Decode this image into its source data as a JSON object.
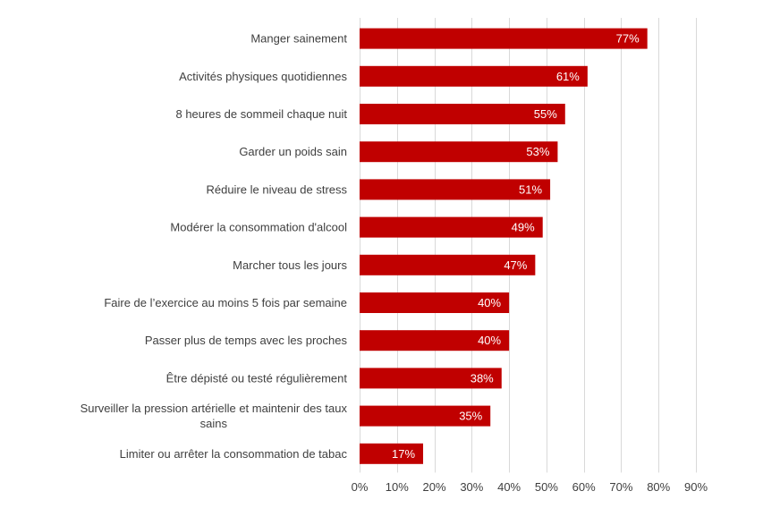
{
  "chart_data": {
    "type": "bar",
    "orientation": "horizontal",
    "categories": [
      "Manger sainement",
      "Activités physiques quotidiennes",
      "8 heures de sommeil chaque nuit",
      "Garder un poids sain",
      "Réduire le niveau de stress",
      "Modérer la consommation d'alcool",
      "Marcher tous les jours",
      "Faire de l’exercice au moins 5 fois par semaine",
      "Passer plus de temps avec les proches",
      "Être dépisté ou testé régulièrement",
      "Surveiller la pression artérielle et maintenir des taux sains",
      "Limiter ou arrêter la consommation de tabac"
    ],
    "values": [
      77,
      61,
      55,
      53,
      51,
      49,
      47,
      40,
      40,
      38,
      35,
      17
    ],
    "data_labels": [
      "77%",
      "61%",
      "55%",
      "53%",
      "51%",
      "49%",
      "47%",
      "40%",
      "40%",
      "38%",
      "35%",
      "17%"
    ],
    "xlim": [
      0,
      90
    ],
    "x_ticks": [
      0,
      10,
      20,
      30,
      40,
      50,
      60,
      70,
      80,
      90
    ],
    "x_tick_labels": [
      "0%",
      "10%",
      "20%",
      "30%",
      "40%",
      "50%",
      "60%",
      "70%",
      "80%",
      "90%"
    ],
    "grid": true,
    "legend": "none",
    "bar_color": "#C00000",
    "title": "",
    "xlabel": "",
    "ylabel": ""
  }
}
